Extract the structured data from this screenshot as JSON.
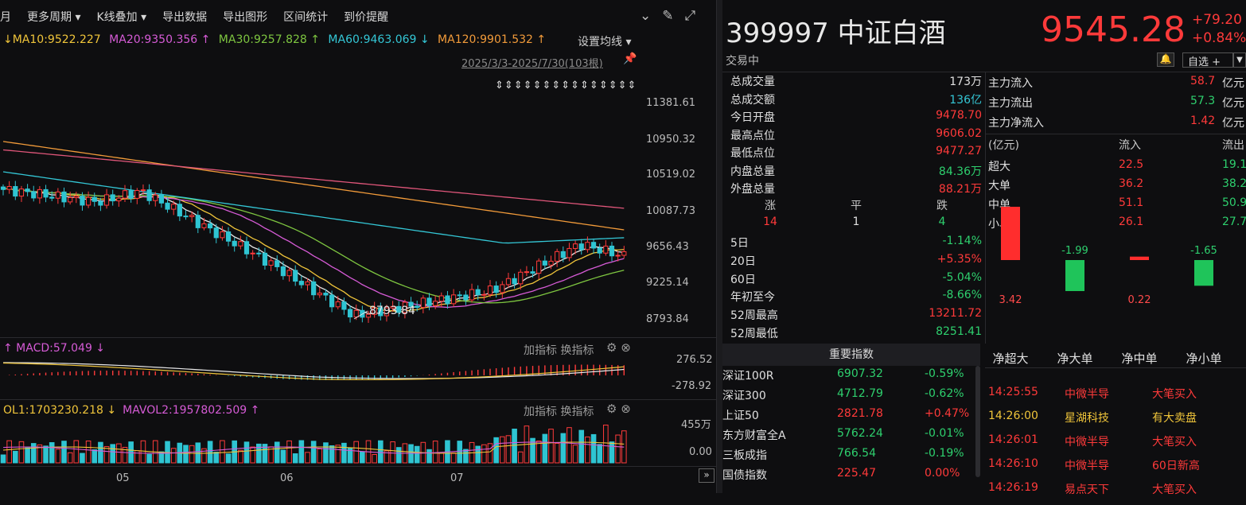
{
  "toolbar": {
    "items": [
      "月",
      "更多周期 ▾",
      "K线叠加 ▾",
      "导出数据",
      "导出图形",
      "区间统计",
      "到价提醒"
    ]
  },
  "ma_legend": [
    {
      "label": "↓MA10:9522.227",
      "color": "#f0c53a"
    },
    {
      "label": "MA20:9350.356 ↑",
      "color": "#d65bd6"
    },
    {
      "label": "MA30:9257.828 ↑",
      "color": "#7ec640"
    },
    {
      "label": "MA60:9463.069 ↓",
      "color": "#34c7d6"
    },
    {
      "label": "MA120:9901.532 ↑",
      "color": "#f29b3a"
    }
  ],
  "set_ma": "设置均线 ▾",
  "range": "2025/3/3-2025/7/30(103根)",
  "arrows": "⇕⇕⇕⇕⇕⇕⇕⇕⇕⇕⇕⇕⇕⇕⇕",
  "yaxis": [
    "11381.61",
    "10950.32",
    "10519.02",
    "10087.73",
    "9656.43",
    "9225.14",
    "8793.84"
  ],
  "low_label": "8793.84",
  "macd": {
    "label": "↑ MACD:57.049 ↓",
    "y_top": "276.52",
    "y_bottom": "-278.92",
    "tools": "加指标 换指标"
  },
  "vol": {
    "label1": "OL1:1703230.218 ↓",
    "label2": "MAVOL2:1957802.509 ↑",
    "y_top": "455万",
    "y_bottom": "0.00",
    "tools": "加指标 换指标"
  },
  "xaxis": [
    "05",
    "06",
    "07"
  ],
  "stock": {
    "code": "399997",
    "name": "中证白酒",
    "price": "9545.28",
    "change": "+79.20",
    "pct": "+0.84%",
    "status": "交易中",
    "watch": "自选 +"
  },
  "quote": [
    {
      "label": "总成交量",
      "value": "173万",
      "cls": "white"
    },
    {
      "label": "总成交额",
      "value": "136亿",
      "cls": "cyan"
    },
    {
      "label": "今日开盘",
      "value": "9478.70",
      "cls": "red"
    },
    {
      "label": "最高点位",
      "value": "9606.02",
      "cls": "red"
    },
    {
      "label": "最低点位",
      "value": "9477.27",
      "cls": "red"
    },
    {
      "label": "内盘总量",
      "value": "84.36万",
      "cls": "green"
    },
    {
      "label": "外盘总量",
      "value": "88.21万",
      "cls": "red"
    }
  ],
  "breadth": {
    "headers": [
      "涨",
      "平",
      "跌"
    ],
    "values": [
      "14",
      "1",
      "4"
    ]
  },
  "perf": [
    {
      "label": "5日",
      "value": "-1.14%",
      "cls": "green"
    },
    {
      "label": "20日",
      "value": "+5.35%",
      "cls": "red"
    },
    {
      "label": "60日",
      "value": "-5.04%",
      "cls": "green"
    },
    {
      "label": "年初至今",
      "value": "-8.66%",
      "cls": "green"
    },
    {
      "label": "52周最高",
      "value": "13211.72",
      "cls": "red"
    },
    {
      "label": "52周最低",
      "value": "8251.41",
      "cls": "green"
    }
  ],
  "flow": [
    {
      "label": "主力流入",
      "value": "58.7",
      "unit": "亿元",
      "cls": "red"
    },
    {
      "label": "主力流出",
      "value": "57.3",
      "unit": "亿元",
      "cls": "green"
    },
    {
      "label": "主力净流入",
      "value": "1.42",
      "unit": "亿元",
      "cls": "red"
    }
  ],
  "flow_table": {
    "headers": [
      "(亿元)",
      "流入",
      "流出"
    ],
    "rows": [
      {
        "label": "超大",
        "in": "22.5",
        "out": "19.1"
      },
      {
        "label": "大单",
        "in": "36.2",
        "out": "38.2"
      },
      {
        "label": "中单",
        "in": "51.1",
        "out": "50.9"
      },
      {
        "label": "小单",
        "in": "26.1",
        "out": "27.7"
      }
    ]
  },
  "net_chart": {
    "type": "bar",
    "categories": [
      "净超大",
      "净大单",
      "净中单",
      "净小单"
    ],
    "values": [
      3.42,
      -1.99,
      0.22,
      -1.65
    ],
    "labels": [
      "3.42",
      "-1.99",
      "0.22",
      "-1.65"
    ],
    "colors": {
      "pos": "#ff2d2d",
      "neg": "#1fc45a"
    }
  },
  "index_head": "重要指数",
  "indices": [
    {
      "name": "深证100R",
      "price": "6907.32",
      "pct": "-0.59%",
      "cls": "green"
    },
    {
      "name": "深证300",
      "price": "4712.79",
      "pct": "-0.62%",
      "cls": "green"
    },
    {
      "name": "上证50",
      "price": "2821.78",
      "pct": "+0.47%",
      "cls": "red"
    },
    {
      "name": "东方财富全A",
      "price": "5762.24",
      "pct": "-0.01%",
      "cls": "green"
    },
    {
      "name": "三板成指",
      "price": "766.54",
      "pct": "-0.19%",
      "cls": "green"
    },
    {
      "name": "国债指数",
      "price": "225.47",
      "pct": "0.00%",
      "cls": "red"
    }
  ],
  "ticks": [
    {
      "time": "14:25:55",
      "stock": "中微半导",
      "event": "大笔买入",
      "cls": "red"
    },
    {
      "time": "14:26:00",
      "stock": "星湖科技",
      "event": "有大卖盘",
      "cls": "yellow"
    },
    {
      "time": "14:26:01",
      "stock": "中微半导",
      "event": "大笔买入",
      "cls": "red"
    },
    {
      "time": "14:26:10",
      "stock": "中微半导",
      "event": "60日新高",
      "cls": "red"
    },
    {
      "time": "14:26:19",
      "stock": "易点天下",
      "event": "大笔买入",
      "cls": "red"
    }
  ]
}
